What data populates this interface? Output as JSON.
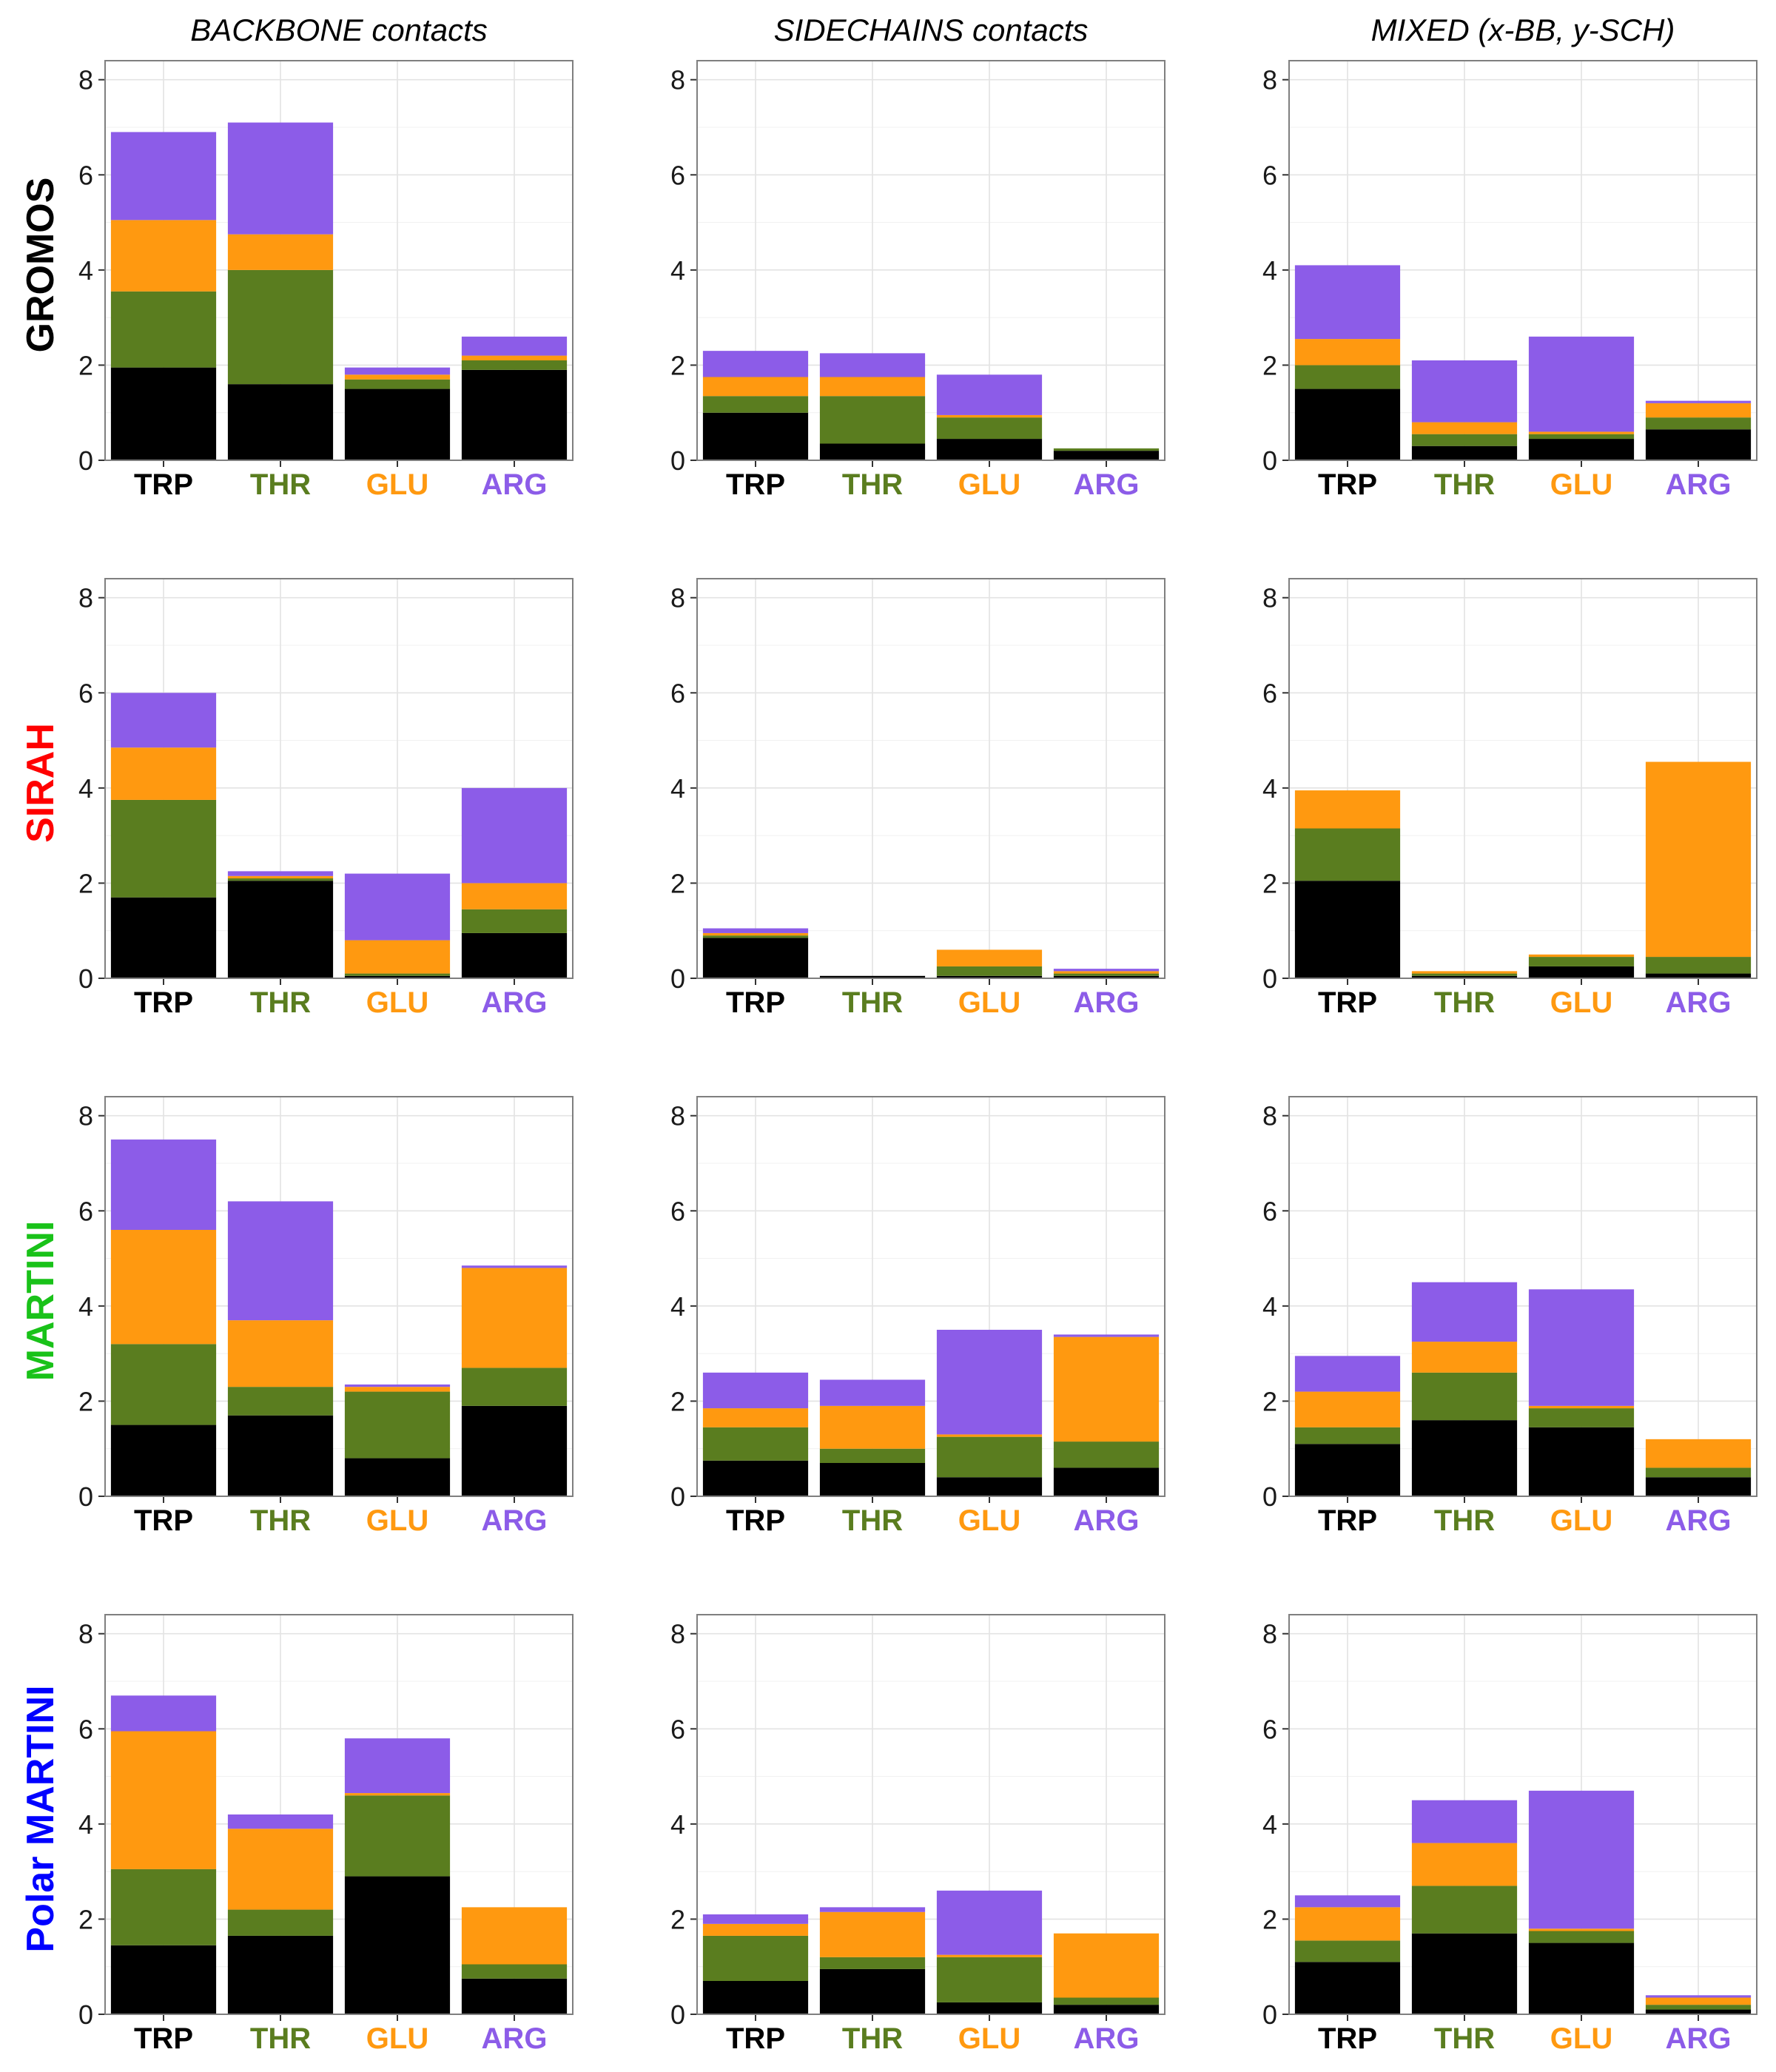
{
  "colors": {
    "TRP": "#000000",
    "THR": "#5a7d1f",
    "GLU": "#ff9910",
    "ARG": "#8c5ce8"
  },
  "column_titles": [
    "BACKBONE contacts",
    "SIDECHAINS contacts",
    "MIXED (x-BB, y-SCH)"
  ],
  "row_titles": [
    {
      "label": "GROMOS",
      "color": "#000000"
    },
    {
      "label": "SIRAH",
      "color": "#ff0000"
    },
    {
      "label": "MARTINI",
      "color": "#19c219"
    },
    {
      "label": "Polar MARTINI",
      "color": "#0000ff"
    }
  ],
  "chart_data": {
    "type": "bar",
    "stacked": true,
    "categories": [
      "TRP",
      "THR",
      "GLU",
      "ARG"
    ],
    "stack_order": [
      "TRP",
      "THR",
      "GLU",
      "ARG"
    ],
    "ylim": [
      0,
      8.4
    ],
    "yticks": [
      0,
      2,
      4,
      6,
      8
    ],
    "grid": true,
    "panels": [
      [
        {
          "values": [
            [
              1.95,
              1.6,
              1.5,
              1.85
            ],
            [
              1.6,
              2.4,
              0.75,
              2.35
            ],
            [
              1.5,
              0.2,
              0.1,
              0.15
            ],
            [
              1.9,
              0.2,
              0.1,
              0.4
            ]
          ]
        },
        {
          "values": [
            [
              1.0,
              0.35,
              0.4,
              0.55
            ],
            [
              0.35,
              1.0,
              0.4,
              0.5
            ],
            [
              0.45,
              0.45,
              0.05,
              0.85
            ],
            [
              0.2,
              0.05,
              0.0,
              0.0
            ]
          ]
        },
        {
          "values": [
            [
              1.5,
              0.5,
              0.55,
              1.55
            ],
            [
              0.3,
              0.25,
              0.25,
              1.3
            ],
            [
              0.45,
              0.1,
              0.05,
              2.0
            ],
            [
              0.65,
              0.25,
              0.3,
              0.05
            ]
          ]
        }
      ],
      [
        {
          "values": [
            [
              1.7,
              2.05,
              1.1,
              1.15
            ],
            [
              2.05,
              0.05,
              0.05,
              0.1
            ],
            [
              0.05,
              0.05,
              0.7,
              1.4
            ],
            [
              0.95,
              0.5,
              0.55,
              2.0
            ]
          ]
        },
        {
          "values": [
            [
              0.85,
              0.05,
              0.05,
              0.1
            ],
            [
              0.05,
              0.0,
              0.0,
              0.0
            ],
            [
              0.05,
              0.2,
              0.35,
              0.0
            ],
            [
              0.05,
              0.05,
              0.05,
              0.05
            ]
          ]
        },
        {
          "values": [
            [
              2.05,
              1.1,
              0.8,
              0.0
            ],
            [
              0.05,
              0.05,
              0.05,
              0.0
            ],
            [
              0.25,
              0.2,
              0.05,
              0.0
            ],
            [
              0.1,
              0.35,
              4.1,
              0.0
            ]
          ]
        }
      ],
      [
        {
          "values": [
            [
              1.5,
              1.7,
              2.4,
              1.9
            ],
            [
              1.7,
              0.6,
              1.4,
              2.5
            ],
            [
              0.8,
              1.4,
              0.1,
              0.05
            ],
            [
              1.9,
              0.8,
              2.1,
              0.05
            ]
          ]
        },
        {
          "values": [
            [
              0.75,
              0.7,
              0.4,
              0.75
            ],
            [
              0.7,
              0.3,
              0.9,
              0.55
            ],
            [
              0.4,
              0.85,
              0.05,
              2.2
            ],
            [
              0.6,
              0.55,
              2.2,
              0.05
            ]
          ]
        },
        {
          "values": [
            [
              1.1,
              0.35,
              0.75,
              0.75
            ],
            [
              1.6,
              1.0,
              0.65,
              1.25
            ],
            [
              1.45,
              0.4,
              0.05,
              2.45
            ],
            [
              0.4,
              0.2,
              0.6,
              0.0
            ]
          ]
        }
      ],
      [
        {
          "values": [
            [
              1.45,
              1.6,
              2.9,
              0.75
            ],
            [
              1.65,
              0.55,
              1.7,
              0.3
            ],
            [
              2.9,
              1.7,
              0.05,
              1.15
            ],
            [
              0.75,
              0.3,
              1.2,
              0.0
            ]
          ]
        },
        {
          "values": [
            [
              0.7,
              0.95,
              0.25,
              0.2
            ],
            [
              0.95,
              0.25,
              0.95,
              0.1
            ],
            [
              0.25,
              0.95,
              0.05,
              1.35
            ],
            [
              0.2,
              0.15,
              1.35,
              0.0
            ]
          ]
        },
        {
          "values": [
            [
              1.1,
              0.45,
              0.7,
              0.25
            ],
            [
              1.7,
              1.0,
              0.9,
              0.9
            ],
            [
              1.5,
              0.25,
              0.05,
              2.9
            ],
            [
              0.1,
              0.1,
              0.15,
              0.05
            ]
          ]
        }
      ]
    ]
  }
}
